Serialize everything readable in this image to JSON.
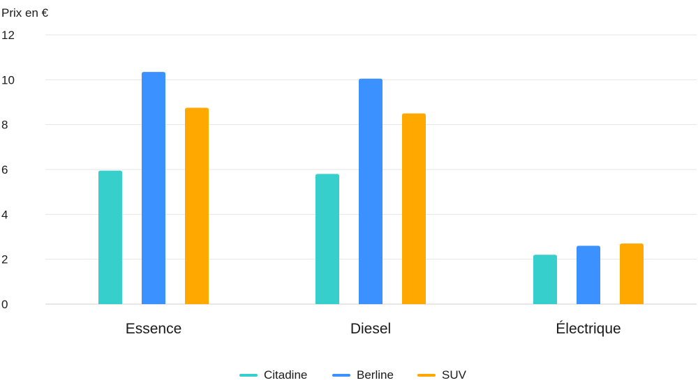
{
  "chart_data": {
    "type": "bar",
    "ylabel": "Prix en €",
    "categories": [
      "Essence",
      "Diesel",
      "Électrique"
    ],
    "series": [
      {
        "name": "Citadine",
        "color": "#36cfcb",
        "values": [
          5.95,
          5.8,
          2.2
        ]
      },
      {
        "name": "Berline",
        "color": "#3b91ff",
        "values": [
          10.35,
          10.05,
          2.6
        ]
      },
      {
        "name": "SUV",
        "color": "#ffa800",
        "values": [
          8.75,
          8.5,
          2.7
        ]
      }
    ],
    "ylim": [
      0,
      12
    ],
    "yticks": [
      0,
      2,
      4,
      6,
      8,
      10,
      12
    ],
    "grid": true,
    "legend": "bottom-center"
  }
}
